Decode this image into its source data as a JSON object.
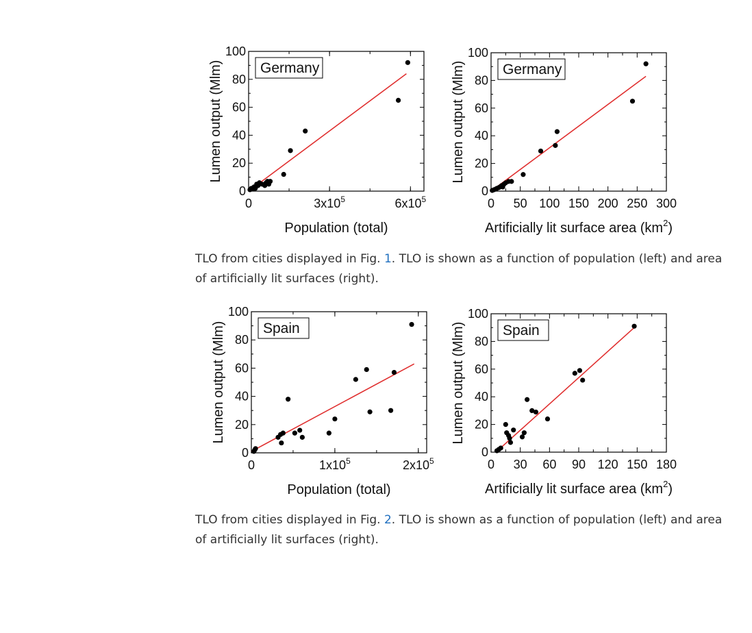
{
  "figures": [
    {
      "caption": {
        "before": "TLO from cities displayed in Fig. ",
        "link": "1",
        "after": ". TLO is shown as a function of population (left) and area of artificially lit surfaces (right)."
      }
    },
    {
      "caption": {
        "before": "TLO from cities displayed in Fig. ",
        "link": "2",
        "after": ". TLO is shown as a function of population (left) and area of artificially lit surfaces (right)."
      }
    }
  ],
  "colors": {
    "fit": "#e03030",
    "points": "#000000",
    "link": "#1f6fbf"
  },
  "chart_data": [
    {
      "id": "germany-pop",
      "type": "scatter",
      "legend": "Germany",
      "xlabel": "Population (total)",
      "ylabel": "Lumen output (Mlm)",
      "xlim": [
        0,
        650000
      ],
      "ylim": [
        0,
        100
      ],
      "xticks": [
        {
          "value": 300000,
          "mant": "3x10",
          "exp": "5"
        },
        {
          "value": 600000,
          "mant": "6x10",
          "exp": "5"
        }
      ],
      "xminor": [
        0,
        150000,
        300000,
        450000,
        600000
      ],
      "yticks": [
        0,
        20,
        40,
        60,
        80,
        100
      ],
      "points": [
        [
          5000,
          1
        ],
        [
          10000,
          2
        ],
        [
          15000,
          1.5
        ],
        [
          20000,
          3
        ],
        [
          25000,
          2
        ],
        [
          30000,
          5
        ],
        [
          35000,
          4
        ],
        [
          40000,
          6
        ],
        [
          50000,
          5
        ],
        [
          60000,
          4
        ],
        [
          65000,
          6
        ],
        [
          70000,
          7
        ],
        [
          75000,
          5
        ],
        [
          80000,
          7
        ],
        [
          130000,
          12
        ],
        [
          155000,
          29
        ],
        [
          210000,
          43
        ],
        [
          555000,
          65
        ],
        [
          590000,
          92
        ]
      ],
      "fit": [
        [
          0,
          0
        ],
        [
          585000,
          84
        ]
      ]
    },
    {
      "id": "germany-area",
      "type": "scatter",
      "legend": "Germany",
      "xlabel": "Artificially lit surface area (km",
      "xlabel_sup": "2",
      "xlabel_end": ")",
      "ylabel": "Lumen output (Mlm)",
      "xlim": [
        0,
        300
      ],
      "ylim": [
        0,
        100
      ],
      "xticks": [
        {
          "value": 0,
          "label": "0"
        },
        {
          "value": 50,
          "label": "50"
        },
        {
          "value": 100,
          "label": "100"
        },
        {
          "value": 150,
          "label": "150"
        },
        {
          "value": 200,
          "label": "200"
        },
        {
          "value": 250,
          "label": "250"
        },
        {
          "value": 300,
          "label": "300"
        }
      ],
      "xminor": [
        25,
        75,
        125,
        175,
        225,
        275
      ],
      "yticks": [
        0,
        20,
        40,
        60,
        80,
        100
      ],
      "points": [
        [
          2,
          0.5
        ],
        [
          5,
          1
        ],
        [
          8,
          1.5
        ],
        [
          10,
          2
        ],
        [
          13,
          2.5
        ],
        [
          15,
          3
        ],
        [
          18,
          4
        ],
        [
          20,
          3
        ],
        [
          22,
          5
        ],
        [
          25,
          6
        ],
        [
          30,
          7
        ],
        [
          35,
          7
        ],
        [
          55,
          12
        ],
        [
          85,
          29
        ],
        [
          110,
          33
        ],
        [
          113,
          43
        ],
        [
          242,
          65
        ],
        [
          265,
          92
        ]
      ],
      "fit": [
        [
          0,
          0
        ],
        [
          265,
          83
        ]
      ]
    },
    {
      "id": "spain-pop",
      "type": "scatter",
      "legend": "Spain",
      "xlabel": "Population (total)",
      "ylabel": "Lumen output (Mlm)",
      "xlim": [
        0,
        210000
      ],
      "ylim": [
        0,
        100
      ],
      "xticks": [
        {
          "value": 100000,
          "mant": "1x10",
          "exp": "5"
        },
        {
          "value": 200000,
          "mant": "2x10",
          "exp": "5"
        }
      ],
      "xminor": [
        0,
        50000,
        100000,
        150000,
        200000
      ],
      "yticks": [
        0,
        20,
        40,
        60,
        80,
        100
      ],
      "points": [
        [
          3000,
          1
        ],
        [
          4000,
          2
        ],
        [
          5000,
          3
        ],
        [
          32000,
          11
        ],
        [
          35000,
          13
        ],
        [
          36000,
          7
        ],
        [
          38000,
          14
        ],
        [
          44000,
          38
        ],
        [
          52000,
          14
        ],
        [
          58000,
          16
        ],
        [
          61000,
          11
        ],
        [
          93000,
          14
        ],
        [
          100000,
          24
        ],
        [
          125000,
          52
        ],
        [
          138000,
          59
        ],
        [
          142000,
          29
        ],
        [
          167000,
          30
        ],
        [
          171000,
          57
        ],
        [
          192000,
          91
        ]
      ],
      "fit": [
        [
          0,
          1
        ],
        [
          195000,
          63
        ]
      ]
    },
    {
      "id": "spain-area",
      "type": "scatter",
      "legend": "Spain",
      "xlabel": "Artificially lit surface area (km",
      "xlabel_sup": "2",
      "xlabel_end": ")",
      "ylabel": "Lumen output (Mlm)",
      "xlim": [
        0,
        180
      ],
      "ylim": [
        0,
        100
      ],
      "xticks": [
        {
          "value": 0,
          "label": "0"
        },
        {
          "value": 30,
          "label": "30"
        },
        {
          "value": 60,
          "label": "60"
        },
        {
          "value": 90,
          "label": "90"
        },
        {
          "value": 120,
          "label": "120"
        },
        {
          "value": 150,
          "label": "150"
        },
        {
          "value": 180,
          "label": "180"
        }
      ],
      "xminor": [
        15,
        45,
        75,
        105,
        135,
        165
      ],
      "yticks": [
        0,
        20,
        40,
        60,
        80,
        100
      ],
      "points": [
        [
          6,
          1
        ],
        [
          8,
          2
        ],
        [
          10,
          3
        ],
        [
          15,
          20
        ],
        [
          16,
          14
        ],
        [
          18,
          12
        ],
        [
          19,
          10
        ],
        [
          20,
          7
        ],
        [
          23,
          16
        ],
        [
          32,
          11
        ],
        [
          34,
          14
        ],
        [
          37,
          38
        ],
        [
          42,
          30
        ],
        [
          46,
          29
        ],
        [
          58,
          24
        ],
        [
          86,
          57
        ],
        [
          91,
          59
        ],
        [
          94,
          52
        ],
        [
          147,
          91
        ]
      ],
      "fit": [
        [
          5,
          0
        ],
        [
          147,
          90
        ]
      ]
    }
  ]
}
